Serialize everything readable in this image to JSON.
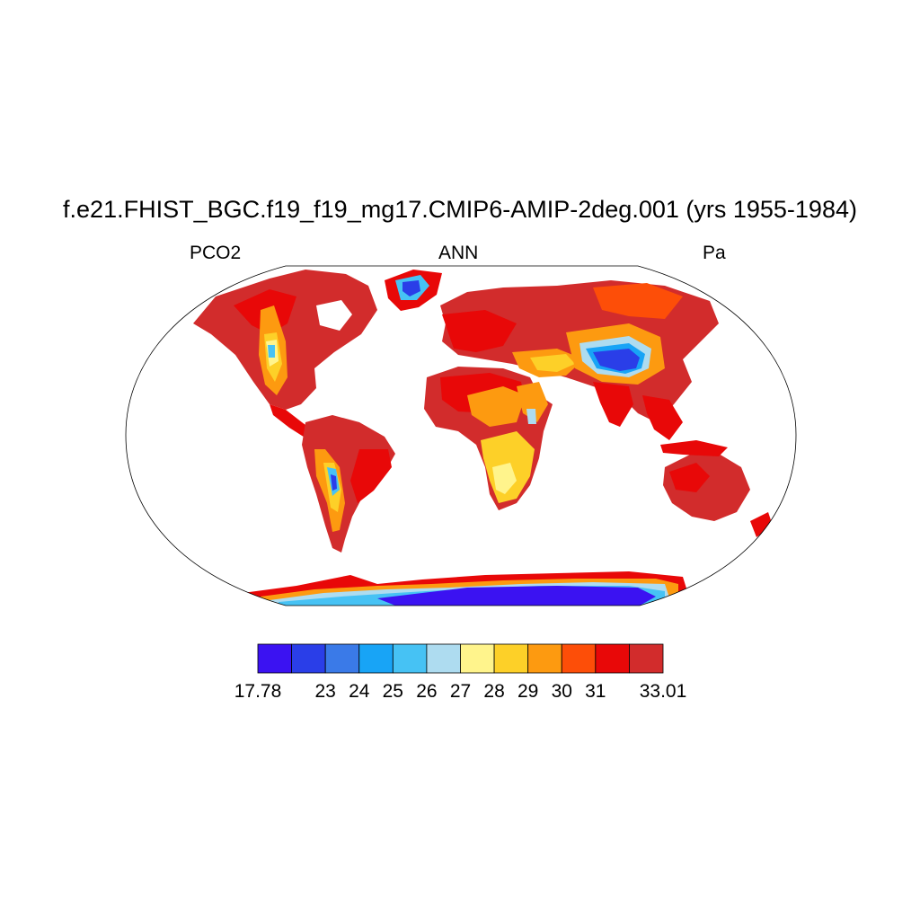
{
  "figure": {
    "title": "f.e21.FHIST_BGC.f19_f19_mg17.CMIP6-AMIP-2deg.001 (yrs 1955-1984)",
    "left_label": "PCO2",
    "center_label": "ANN",
    "right_label": "Pa"
  },
  "colorbar": {
    "colors": [
      "#3b12f2",
      "#2a3ee8",
      "#3a7ae8",
      "#18a4f6",
      "#46c2f4",
      "#aedcf0",
      "#fff48c",
      "#fdd028",
      "#fd9a10",
      "#fd4e08",
      "#e80808",
      "#d22c2c"
    ],
    "labels": [
      "17.78",
      "23",
      "24",
      "25",
      "26",
      "27",
      "28",
      "29",
      "30",
      "31",
      "33.01"
    ]
  },
  "map_legend": {
    "projection": "robinson",
    "land_fill_note": "",
    "ocean_color": "#ffffff"
  }
}
